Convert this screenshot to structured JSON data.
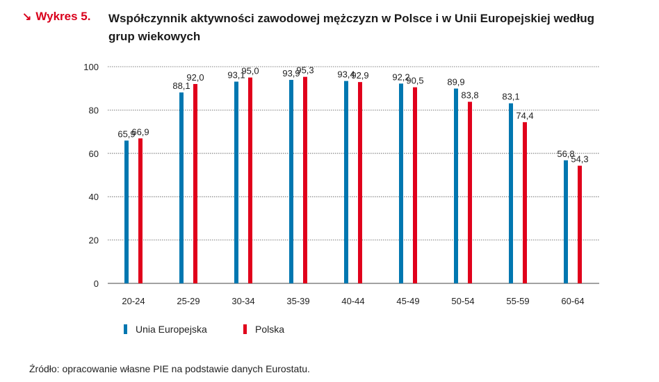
{
  "figure": {
    "label": "Wykres 5.",
    "title": "Współczynnik aktywności zawodowej mężczyzn w Polsce i w Unii Europejskiej według grup wiekowych"
  },
  "chart_data": {
    "type": "bar",
    "title": "Współczynnik aktywności zawodowej mężczyzn w Polsce i w Unii Europejskiej według grup wiekowych",
    "xlabel": "",
    "ylabel": "",
    "ylim": [
      0,
      100
    ],
    "yticks": [
      0,
      20,
      40,
      60,
      80,
      100
    ],
    "grid": true,
    "legend_position": "bottom-left",
    "categories": [
      "20-24",
      "25-29",
      "30-34",
      "35-39",
      "40-44",
      "45-49",
      "50-54",
      "55-59",
      "60-64"
    ],
    "series": [
      {
        "name": "Unia Europejska",
        "color": "#0077b0",
        "values": [
          65.9,
          88.1,
          93.1,
          93.9,
          93.4,
          92.2,
          89.9,
          83.1,
          56.8
        ],
        "labels": [
          "65,9",
          "88,1",
          "93,1",
          "93,9",
          "93,4",
          "92,2",
          "89,9",
          "83,1",
          "56,8"
        ]
      },
      {
        "name": "Polska",
        "color": "#e0001b",
        "values": [
          66.9,
          92.0,
          95.0,
          95.3,
          92.9,
          90.5,
          83.8,
          74.4,
          54.3
        ],
        "labels": [
          "66,9",
          "92,0",
          "95,0",
          "95,3",
          "92,9",
          "90,5",
          "83,8",
          "74,4",
          "54,3"
        ]
      }
    ]
  },
  "source": "Źródło: opracowanie własne PIE na podstawie danych Eurostatu."
}
